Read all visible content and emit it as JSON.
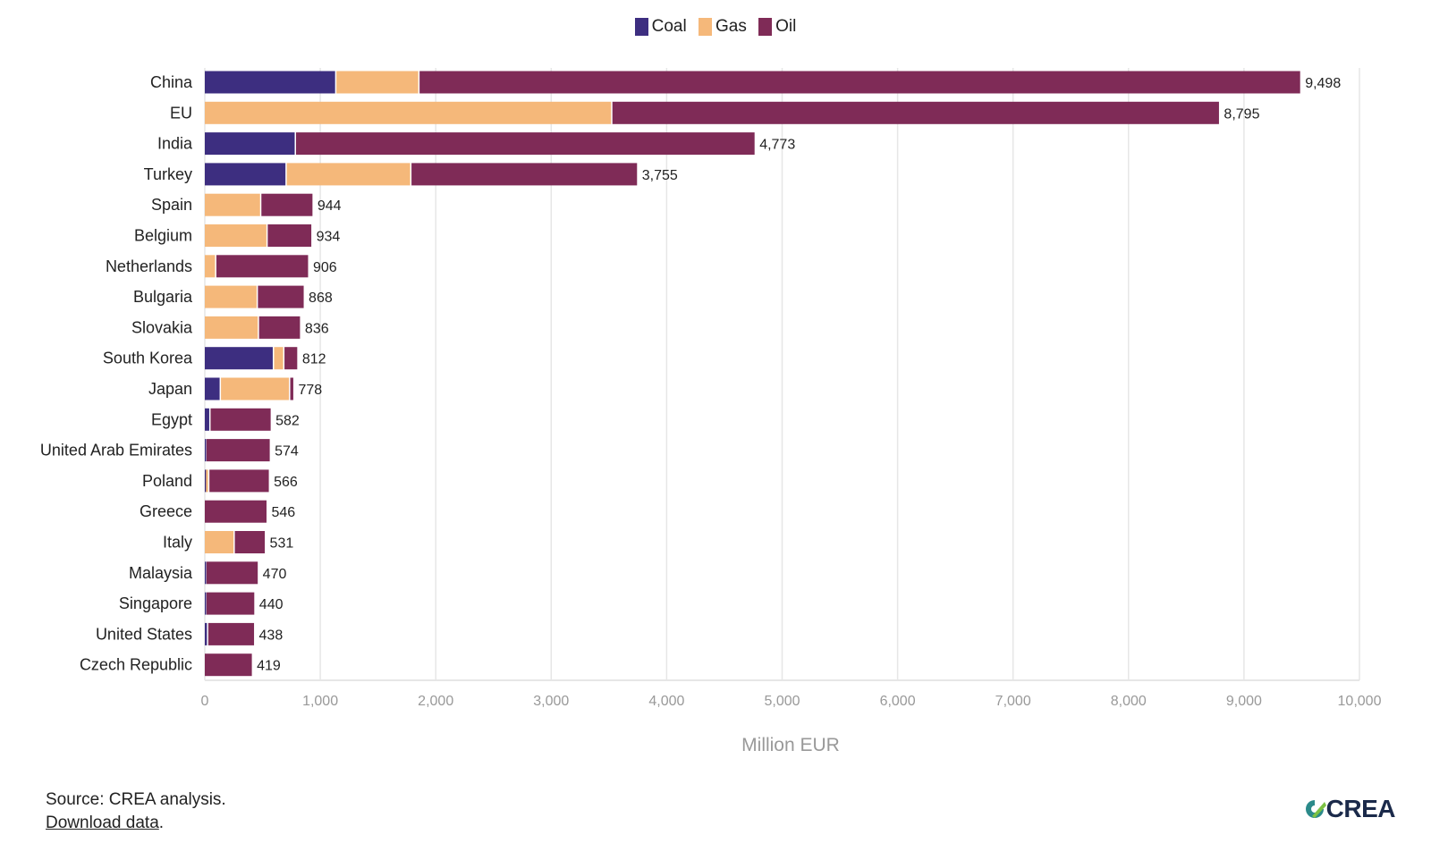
{
  "chart_data": {
    "type": "bar",
    "orientation": "horizontal",
    "stacked": true,
    "categories": [
      "China",
      "EU",
      "India",
      "Turkey",
      "Spain",
      "Belgium",
      "Netherlands",
      "Bulgaria",
      "Slovakia",
      "South Korea",
      "Japan",
      "Egypt",
      "United Arab Emirates",
      "Poland",
      "Greece",
      "Italy",
      "Malaysia",
      "Singapore",
      "United States",
      "Czech Republic"
    ],
    "series": [
      {
        "name": "Coal",
        "color": "#3d2e80",
        "values": [
          1140,
          0,
          790,
          710,
          0,
          0,
          0,
          0,
          0,
          600,
          140,
          50,
          15,
          10,
          0,
          0,
          15,
          15,
          30,
          0
        ]
      },
      {
        "name": "Gas",
        "color": "#f5b87a",
        "values": [
          720,
          3530,
          0,
          1080,
          490,
          545,
          100,
          460,
          470,
          90,
          600,
          0,
          0,
          30,
          0,
          260,
          0,
          0,
          0,
          0
        ]
      },
      {
        "name": "Oil",
        "color": "#7f2b57",
        "values": [
          7638,
          5265,
          3983,
          1965,
          454,
          389,
          806,
          408,
          366,
          122,
          38,
          532,
          559,
          526,
          546,
          271,
          455,
          425,
          408,
          419
        ]
      }
    ],
    "totals": [
      "9,498",
      "8,795",
      "4,773",
      "3,755",
      "944",
      "934",
      "906",
      "868",
      "836",
      "812",
      "778",
      "582",
      "574",
      "566",
      "546",
      "531",
      "470",
      "440",
      "438",
      "419"
    ],
    "xlim": [
      0,
      10000
    ],
    "xticks": [
      0,
      1000,
      2000,
      3000,
      4000,
      5000,
      6000,
      7000,
      8000,
      9000,
      10000
    ],
    "xtick_labels": [
      "0",
      "1,000",
      "2,000",
      "3,000",
      "4,000",
      "5,000",
      "6,000",
      "7,000",
      "8,000",
      "9,000",
      "10,000"
    ],
    "xlabel": "Million EUR",
    "ylabel": "",
    "title": "",
    "legend_position": "top-center",
    "grid": true
  },
  "legend": {
    "items": [
      "Coal",
      "Gas",
      "Oil"
    ]
  },
  "footer": {
    "source": "Source: CREA analysis.",
    "download_link": "Download data",
    "download_suffix": "."
  },
  "logo": {
    "text": "CREA"
  },
  "colors": {
    "coal": "#3d2e80",
    "gas": "#f5b87a",
    "oil": "#7f2b57",
    "grid": "#e6e6e6",
    "axis_label": "#999999"
  }
}
